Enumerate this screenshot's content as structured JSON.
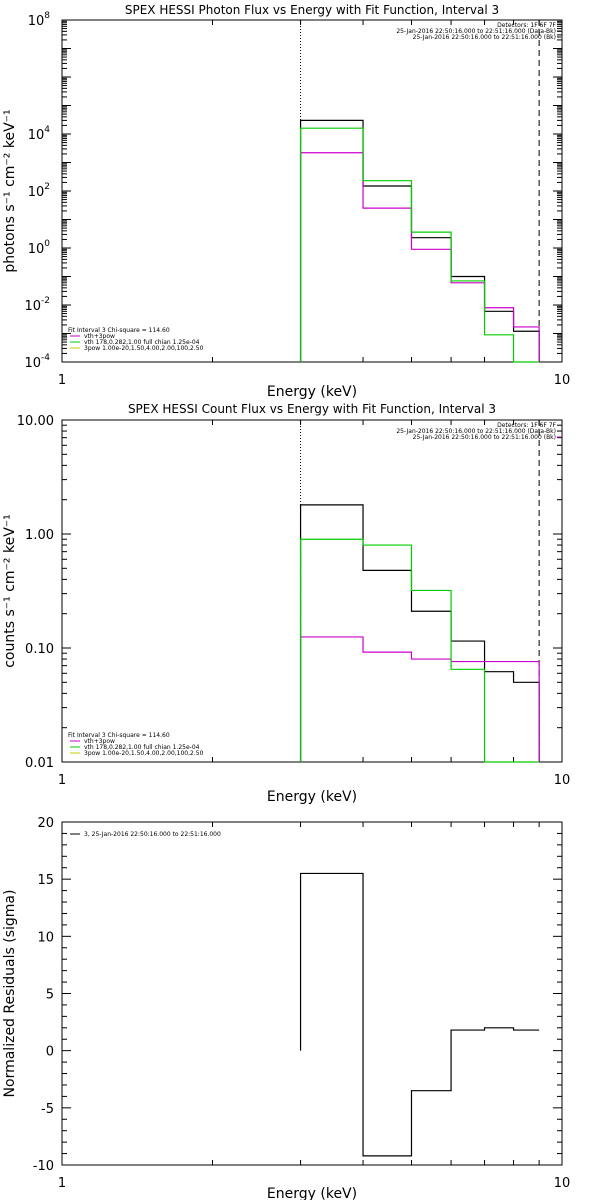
{
  "chart_data": [
    {
      "type": "line",
      "title": "SPEX HESSI Photon Flux vs Energy with Fit Function, Interval 3",
      "xlabel": "Energy (keV)",
      "ylabel": "photons s⁻¹ cm⁻² keV⁻¹",
      "xscale": "log",
      "yscale": "log",
      "xlim": [
        1,
        10
      ],
      "ylim": [
        0.0001,
        100000000
      ],
      "x_ticks": [
        "1",
        "10"
      ],
      "y_ticks": [
        {
          "v": 0.0001,
          "b": "10",
          "e": "-4"
        },
        {
          "v": 0.01,
          "b": "10",
          "e": "-2"
        },
        {
          "v": 1,
          "b": "10",
          "e": "0"
        },
        {
          "v": 100,
          "b": "10",
          "e": "2"
        },
        {
          "v": 10000,
          "b": "10",
          "e": "4"
        },
        {
          "v": 100000000,
          "b": "10",
          "e": "8"
        }
      ],
      "vlines": [
        {
          "x": 3.0,
          "style": "dotted"
        },
        {
          "x": 9.0,
          "style": "dashed"
        }
      ],
      "bin_edges": [
        3.0,
        4.0,
        5.0,
        6.0,
        7.0,
        8.0,
        9.0
      ],
      "series": [
        {
          "name": "Data",
          "color": "#000000",
          "values": [
            30000,
            150,
            2.3,
            0.1,
            0.006,
            0.0012
          ]
        },
        {
          "name": "vth+3pow",
          "color": "#cc00cc",
          "values": [
            2200,
            25,
            0.9,
            0.06,
            0.008,
            0.0017
          ]
        },
        {
          "name": "vth 178,0.282,1.00  full chian 1.25e-04",
          "color": "#00cc00",
          "values": [
            16000,
            230,
            3.6,
            0.07,
            0.0009,
            0.0001
          ]
        },
        {
          "name": "3pow 1.00e-20,1.50,4.00,2.00,100,2.50",
          "color": "#cccc00",
          "values": []
        }
      ],
      "info_right": [
        "Detectors: 1F 6F 7F",
        "25-Jan-2016 22:50:16.000 to 22:51:16.000 (Data-Bk)",
        "25-Jan-2016 22:50:16.000 to 22:51:16.000 (Bk)"
      ],
      "info_left": "Fit Interval 3   Chi-square = 114.60"
    },
    {
      "type": "line",
      "title": "SPEX HESSI Count Flux vs Energy with Fit Function, Interval 3",
      "xlabel": "Energy (keV)",
      "ylabel": "counts s⁻¹ cm⁻² keV⁻¹",
      "xscale": "log",
      "yscale": "log",
      "xlim": [
        1,
        10
      ],
      "ylim": [
        0.01,
        10
      ],
      "x_ticks": [
        "1",
        "10"
      ],
      "y_ticks": [
        {
          "v": 0.01,
          "t": "0.01"
        },
        {
          "v": 0.1,
          "t": "0.10"
        },
        {
          "v": 1,
          "t": "1.00"
        },
        {
          "v": 10,
          "t": "10.00"
        }
      ],
      "vlines": [
        {
          "x": 3.0,
          "style": "dotted"
        },
        {
          "x": 9.0,
          "style": "dashed"
        }
      ],
      "bin_edges": [
        3.0,
        4.0,
        5.0,
        6.0,
        7.0,
        8.0,
        9.0
      ],
      "series": [
        {
          "name": "Data",
          "color": "#000000",
          "values": [
            1.8,
            0.48,
            0.21,
            0.115,
            0.062,
            0.05
          ]
        },
        {
          "name": "vth+3pow",
          "color": "#cc00cc",
          "values": [
            0.125,
            0.092,
            0.08,
            0.076,
            0.076,
            0.076
          ]
        },
        {
          "name": "vth 178,0.282,1.00  full chian 1.25e-04",
          "color": "#00cc00",
          "values": [
            0.9,
            0.8,
            0.32,
            0.065,
            0.01,
            0.01
          ]
        },
        {
          "name": "3pow 1.00e-20,1.50,4.00,2.00,100,2.50",
          "color": "#cccc00",
          "values": []
        }
      ],
      "info_right": [
        "Detectors: 1F 6F 7F",
        "25-Jan-2016 22:50:16.000 to 22:51:16.000 (Data-Bk)",
        "25-Jan-2016 22:50:16.000 to 22:51:16.000 (Bk)"
      ],
      "info_left": "Fit Interval 3   Chi-square = 114.60"
    },
    {
      "type": "line",
      "title": "",
      "xlabel": "Energy (keV)",
      "ylabel": "Normalized Residuals (sigma)",
      "xscale": "log",
      "yscale": "linear",
      "xlim": [
        1,
        10
      ],
      "ylim": [
        -10,
        20
      ],
      "x_ticks": [
        "1",
        "10"
      ],
      "y_ticks": [
        {
          "v": -10,
          "t": "-10"
        },
        {
          "v": -5,
          "t": "-5"
        },
        {
          "v": 0,
          "t": "0"
        },
        {
          "v": 5,
          "t": "5"
        },
        {
          "v": 10,
          "t": "10"
        },
        {
          "v": 15,
          "t": "15"
        },
        {
          "v": 20,
          "t": "20"
        }
      ],
      "bin_edges": [
        3.0,
        4.0,
        5.0,
        6.0,
        7.0,
        8.0,
        9.0
      ],
      "series": [
        {
          "name": "3, 25-Jan-2016 22:50:16.000 to 22:51:16.000",
          "color": "#000000",
          "values": [
            15.5,
            -9.2,
            -3.5,
            1.8,
            2.0,
            1.8
          ]
        }
      ]
    }
  ]
}
